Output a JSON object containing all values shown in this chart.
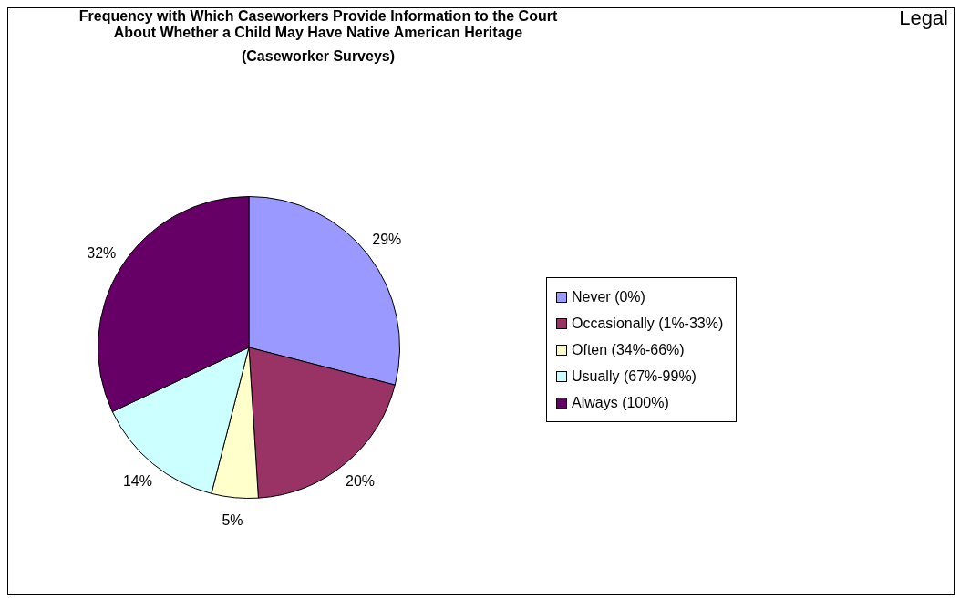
{
  "chart_data": {
    "type": "pie",
    "title": "Frequency with Which Caseworkers Provide Information to the Court\nAbout Whether a Child May Have Native American Heritage\n(Caseworker Surveys)",
    "categories": [
      "Never (0%)",
      "Occasionally (1%-33%)",
      "Often (34%-66%)",
      "Usually (67%-99%)",
      "Always (100%)"
    ],
    "values": [
      29,
      20,
      5,
      14,
      32
    ],
    "value_labels": [
      "29%",
      "20%",
      "5%",
      "14%",
      "32%"
    ],
    "colors": [
      "#9999ff",
      "#993366",
      "#ffffcc",
      "#ccffff",
      "#660066"
    ],
    "legend": "right",
    "annotations": [
      "Legal"
    ]
  }
}
